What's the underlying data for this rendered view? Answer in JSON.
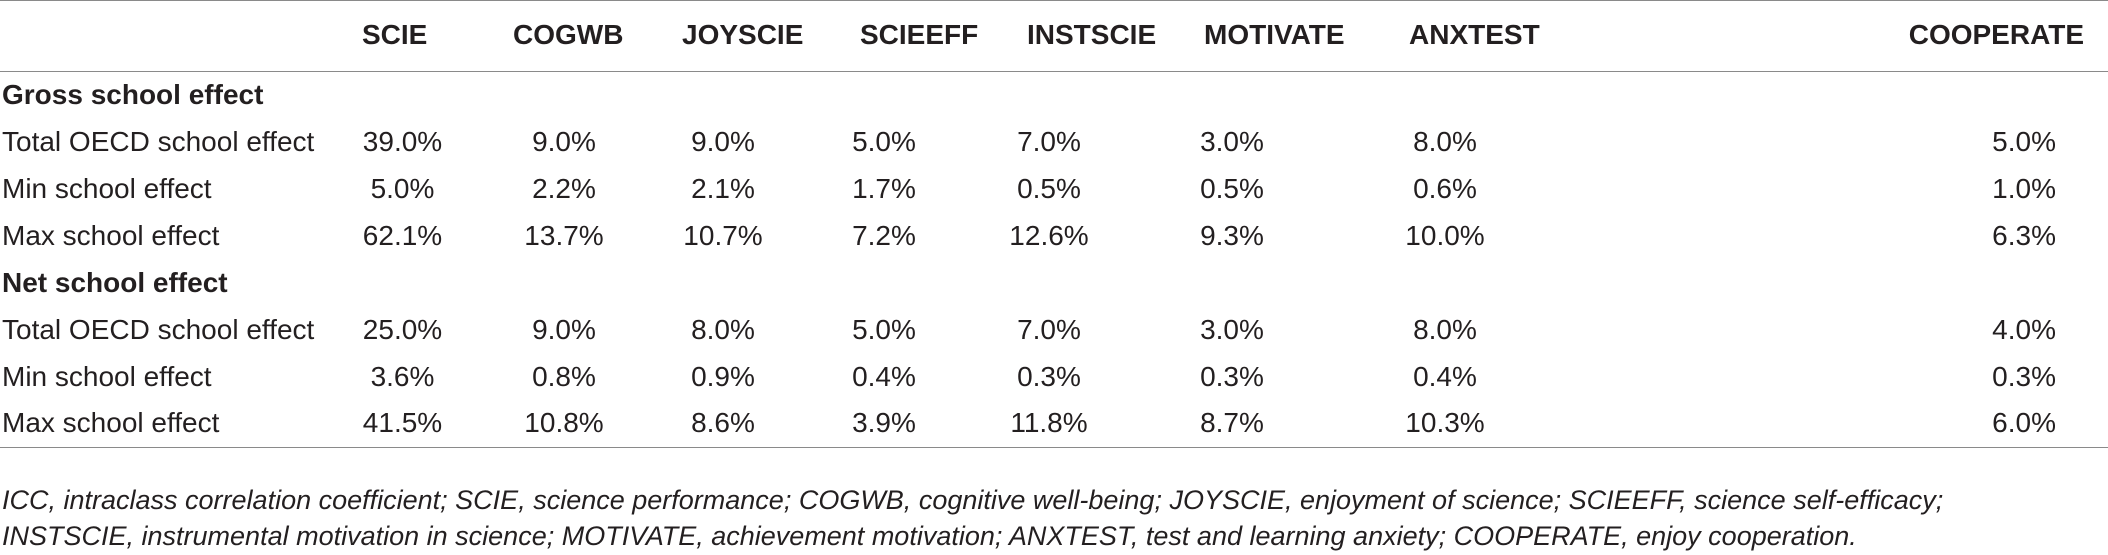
{
  "table": {
    "columns": [
      "",
      "SCIE",
      "COGWB",
      "JOYSCIE",
      "SCIEEFF",
      "INSTSCIE",
      "MOTIVATE",
      "ANXTEST",
      "COOPERATE"
    ],
    "groups": [
      {
        "title": "Gross school effect",
        "rows": [
          {
            "label": "Total OECD school effect",
            "values": [
              "39.0%",
              "9.0%",
              "9.0%",
              "5.0%",
              "7.0%",
              "3.0%",
              "8.0%",
              "5.0%"
            ]
          },
          {
            "label": "Min school effect",
            "values": [
              "5.0%",
              "2.2%",
              "2.1%",
              "1.7%",
              "0.5%",
              "0.5%",
              "0.6%",
              "1.0%"
            ]
          },
          {
            "label": "Max school effect",
            "values": [
              "62.1%",
              "13.7%",
              "10.7%",
              "7.2%",
              "12.6%",
              "9.3%",
              "10.0%",
              "6.3%"
            ]
          }
        ]
      },
      {
        "title": "Net school effect",
        "rows": [
          {
            "label": "Total OECD school effect",
            "values": [
              "25.0%",
              "9.0%",
              "8.0%",
              "5.0%",
              "7.0%",
              "3.0%",
              "8.0%",
              "4.0%"
            ]
          },
          {
            "label": "Min school effect",
            "values": [
              "3.6%",
              "0.8%",
              "0.9%",
              "0.4%",
              "0.3%",
              "0.3%",
              "0.4%",
              "0.3%"
            ]
          },
          {
            "label": "Max school effect",
            "values": [
              "41.5%",
              "10.8%",
              "8.6%",
              "3.9%",
              "11.8%",
              "8.7%",
              "10.3%",
              "6.0%"
            ]
          }
        ]
      }
    ]
  },
  "footnote": {
    "line1": "ICC, intraclass correlation coefficient; SCIE, science performance; COGWB, cognitive well-being; JOYSCIE, enjoyment of science; SCIEEFF, science self-efficacy;",
    "line2": "INSTSCIE, instrumental motivation in science; MOTIVATE, achievement motivation; ANXTEST, test and learning anxiety; COOPERATE, enjoy cooperation."
  }
}
